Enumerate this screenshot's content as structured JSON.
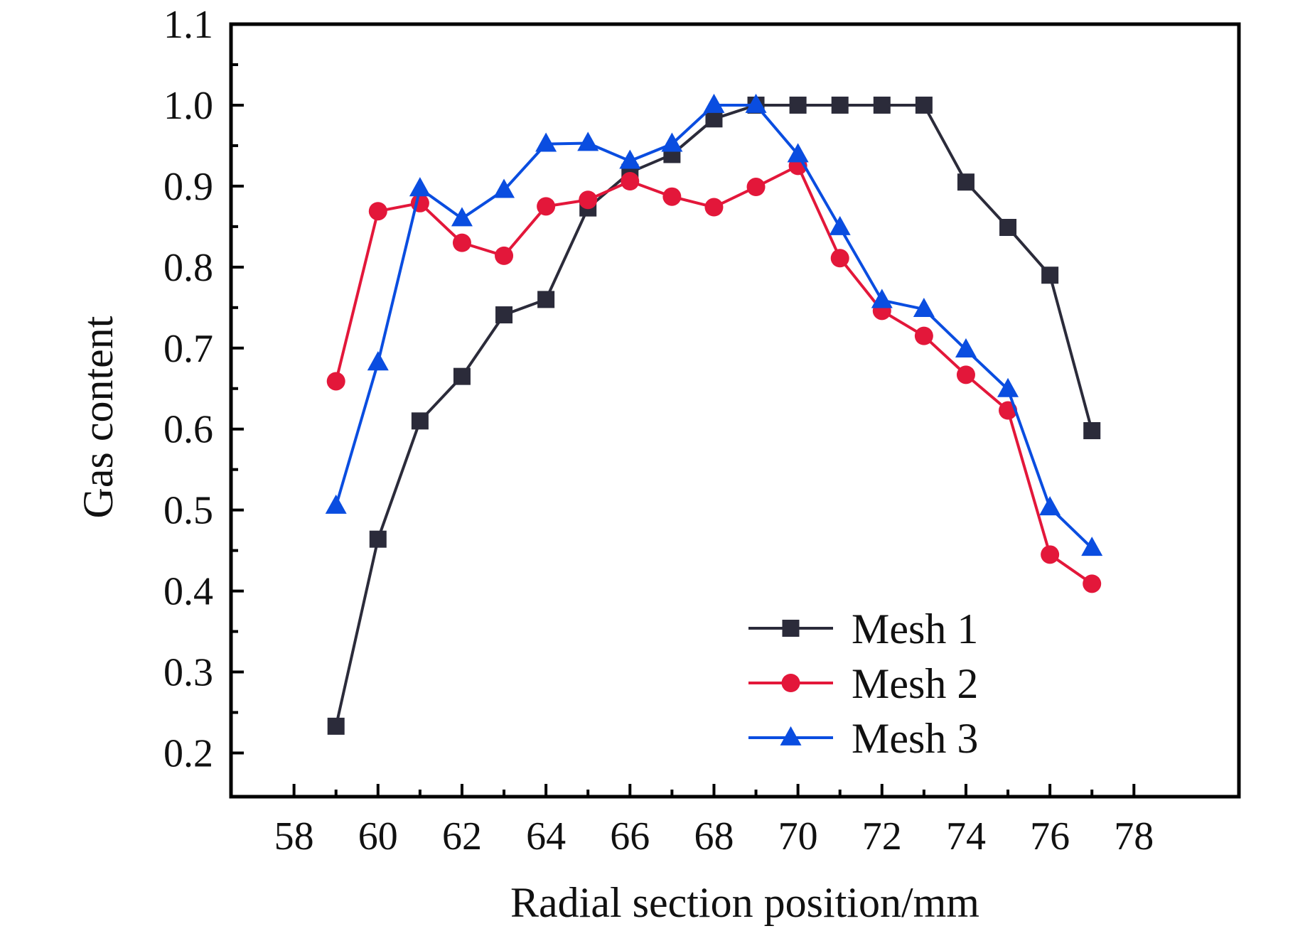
{
  "chart_data": {
    "type": "line",
    "title": "",
    "xlabel": "Radial section position/mm",
    "ylabel": "Gas content",
    "xlim": [
      56.5,
      80.5
    ],
    "ylim": [
      0.146,
      1.1
    ],
    "xticks": [
      58,
      60,
      62,
      64,
      66,
      68,
      70,
      72,
      74,
      76,
      78
    ],
    "xtick_labels": [
      "58",
      "60",
      "62",
      "64",
      "66",
      "68",
      "70",
      "72",
      "74",
      "76",
      "78"
    ],
    "yticks": [
      0.2,
      0.3,
      0.4,
      0.5,
      0.6,
      0.7,
      0.8,
      0.9,
      1.0,
      1.1
    ],
    "ytick_labels": [
      "0.2",
      "0.3",
      "0.4",
      "0.5",
      "0.6",
      "0.7",
      "0.8",
      "0.9",
      "1.0",
      "1.1"
    ],
    "grid": false,
    "legend_position": "lower-center-right",
    "x": [
      59,
      60,
      61,
      62,
      63,
      64,
      65,
      66,
      67,
      68,
      69,
      70,
      71,
      72,
      73,
      74,
      75,
      76,
      77
    ],
    "series": [
      {
        "name": "Mesh 1",
        "marker": "square",
        "color": "#2b2b3a",
        "values": [
          0.233,
          0.464,
          0.61,
          0.665,
          0.741,
          0.76,
          0.873,
          0.917,
          0.939,
          0.983,
          1.0,
          1.0,
          1.0,
          1.0,
          1.0,
          0.905,
          0.849,
          0.79,
          0.598
        ]
      },
      {
        "name": "Mesh 2",
        "marker": "circle",
        "color": "#e3173a",
        "values": [
          0.659,
          0.869,
          0.879,
          0.83,
          0.814,
          0.875,
          0.883,
          0.906,
          0.887,
          0.874,
          0.899,
          0.925,
          0.811,
          0.746,
          0.715,
          0.667,
          0.623,
          0.445,
          0.409
        ]
      },
      {
        "name": "Mesh 3",
        "marker": "triangle",
        "color": "#0a4de0",
        "values": [
          0.505,
          0.682,
          0.897,
          0.86,
          0.895,
          0.952,
          0.953,
          0.931,
          0.952,
          1.0,
          1.0,
          0.939,
          0.849,
          0.759,
          0.748,
          0.698,
          0.649,
          0.503,
          0.453
        ]
      }
    ]
  }
}
